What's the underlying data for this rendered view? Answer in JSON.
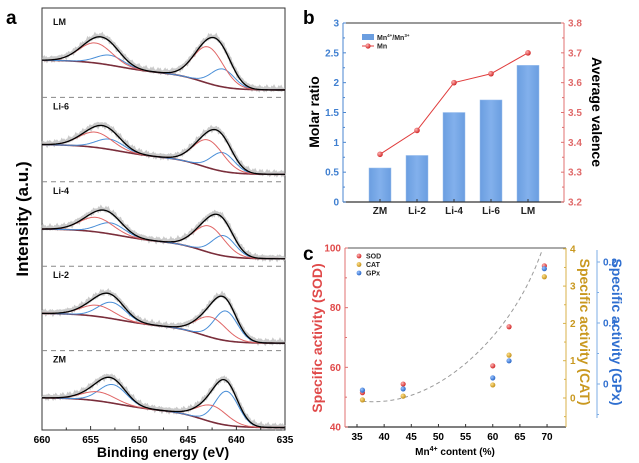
{
  "chart_data": [
    {
      "panel": "a",
      "type": "line",
      "title": "",
      "xlabel": "Binding energy (eV)",
      "ylabel": "Intensity (a.u.)",
      "xlim": [
        660,
        635
      ],
      "xticks": [
        "660",
        "655",
        "650",
        "645",
        "640",
        "635"
      ],
      "legend": null,
      "samples": [
        {
          "name": "LM",
          "mn2p1_peak_ev": 653.6,
          "mn2p3_peak_ev": 642.0,
          "mn4_fraction": 0.7
        },
        {
          "name": "Li-6",
          "mn2p1_peak_ev": 653.6,
          "mn2p3_peak_ev": 642.0,
          "mn4_fraction": 0.63
        },
        {
          "name": "Li-4",
          "mn2p1_peak_ev": 653.5,
          "mn2p3_peak_ev": 641.9,
          "mn4_fraction": 0.6
        },
        {
          "name": "Li-2",
          "mn2p1_peak_ev": 653.4,
          "mn2p3_peak_ev": 641.7,
          "mn4_fraction": 0.44
        },
        {
          "name": "ZM",
          "mn2p1_peak_ev": 653.3,
          "mn2p3_peak_ev": 641.6,
          "mn4_fraction": 0.36
        }
      ],
      "series_colors": {
        "raw": "#b8b8b8",
        "envelope": "#000000",
        "mn4": "#e06666",
        "mn3": "#4a8fd8",
        "background": "#7a2e3b"
      },
      "separator": "dashed"
    },
    {
      "panel": "b",
      "type": "bar",
      "categories": [
        "ZM",
        "Li-2",
        "Li-4",
        "Li-6",
        "LM"
      ],
      "series": [
        {
          "name": "Mn4+/Mn3+",
          "kind": "bar",
          "axis": "left",
          "values": [
            0.57,
            0.78,
            1.5,
            1.71,
            2.29
          ],
          "color": "#6a9fe0"
        },
        {
          "name": "Mn",
          "kind": "line",
          "axis": "right",
          "values": [
            3.36,
            3.44,
            3.6,
            3.63,
            3.7
          ],
          "color": "#e03c3c"
        }
      ],
      "xlabel": "",
      "ylabel": "Molar ratio",
      "y2label": "Average valence",
      "ylim": [
        0,
        3
      ],
      "yticks": [
        "0",
        "0.5",
        "1",
        "1.5",
        "2",
        "2.5",
        "3"
      ],
      "y2lim": [
        3.2,
        3.8
      ],
      "y2ticks": [
        "3.2",
        "3.3",
        "3.4",
        "3.5",
        "3.6",
        "3.7",
        "3.8"
      ],
      "legend_position": "top-left",
      "legend": [
        {
          "label": "Mn",
          "sup1": "4+",
          "mid": "/Mn",
          "sup2": "3+"
        },
        {
          "label": "Mn"
        }
      ]
    },
    {
      "panel": "c",
      "type": "scatter",
      "x": [
        36,
        43.5,
        60,
        63,
        69.5
      ],
      "series": [
        {
          "name": "SOD",
          "axis": "left",
          "values": [
            51.5,
            54.4,
            60.5,
            73.6,
            94.0
          ],
          "color": "#e04a4a"
        },
        {
          "name": "CAT",
          "axis": "right1",
          "values": [
            -0.05,
            0.05,
            0.35,
            1.15,
            3.25
          ],
          "color": "#d4a32a"
        },
        {
          "name": "GPx",
          "axis": "right2",
          "values": [
            -0.01,
            -0.008,
            0.01,
            0.038,
            0.189
          ],
          "color": "#3b7dd8"
        }
      ],
      "trend": {
        "style": "dashed",
        "color": "#999999",
        "kind": "exponential"
      },
      "xlabel": "Mn4+ content (%)",
      "xlabel_base": "Mn",
      "xlabel_sup": "4+",
      "xlabel_rest": " content (%)",
      "xlim": [
        33,
        73
      ],
      "xticks": [
        "35",
        "40",
        "45",
        "50",
        "55",
        "60",
        "65",
        "70"
      ],
      "ylabel": "Specific activity (SOD)",
      "ylim": [
        40,
        100
      ],
      "yticks": [
        "40",
        "60",
        "80",
        "100"
      ],
      "y2label": "Specific activity (CAT)",
      "y2lim": [
        -0.78,
        4
      ],
      "y2ticks": [
        "0",
        "1",
        "2",
        "3",
        "4"
      ],
      "y3label": "Specific activity (GPx)",
      "y3lim": [
        -0.05,
        0.22
      ],
      "y3ticks": [
        "0",
        "0.1",
        "0.2"
      ],
      "legend_position": "top-left",
      "legend": [
        "SOD",
        "CAT",
        "GPx"
      ]
    }
  ],
  "panel_letters": [
    "a",
    "b",
    "c"
  ]
}
